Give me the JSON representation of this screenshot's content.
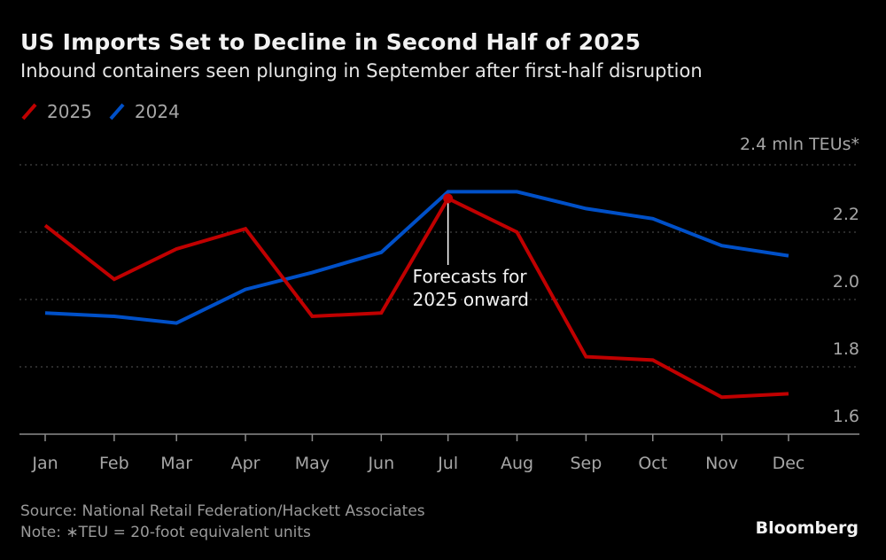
{
  "chart_data": {
    "type": "line",
    "title": "US Imports Set to Decline in Second Half of 2025",
    "subtitle": "Inbound containers seen plunging in September after first-half disruption",
    "xlabel": "",
    "ylabel": "2.4 mln TEUs*",
    "categories": [
      "Jan",
      "Feb",
      "Mar",
      "Apr",
      "May",
      "Jun",
      "Jul",
      "Aug",
      "Sep",
      "Oct",
      "Nov",
      "Dec"
    ],
    "ylim": [
      1.6,
      2.4
    ],
    "yticks": [
      "1.6",
      "1.8",
      "2.0",
      "2.2",
      "2.4"
    ],
    "grid": true,
    "legend_position": "top-left",
    "series": [
      {
        "name": "2025",
        "color": "#c00000",
        "values": [
          2.22,
          2.06,
          2.15,
          2.21,
          1.95,
          1.96,
          2.3,
          2.2,
          1.83,
          1.82,
          1.71,
          1.72
        ]
      },
      {
        "name": "2024",
        "color": "#0050c8",
        "values": [
          1.96,
          1.95,
          1.93,
          2.03,
          2.08,
          2.14,
          2.32,
          2.32,
          2.27,
          2.24,
          2.16,
          2.13
        ]
      }
    ],
    "annotations": [
      {
        "text_lines": [
          "Forecasts for",
          "2025 onward"
        ],
        "series": "2025",
        "category": "Jul"
      }
    ]
  },
  "footer": {
    "source": "Source: National Retail Federation/Hackett Associates",
    "note": "Note: ∗TEU = 20-foot equivalent units"
  },
  "brand": "Bloomberg"
}
